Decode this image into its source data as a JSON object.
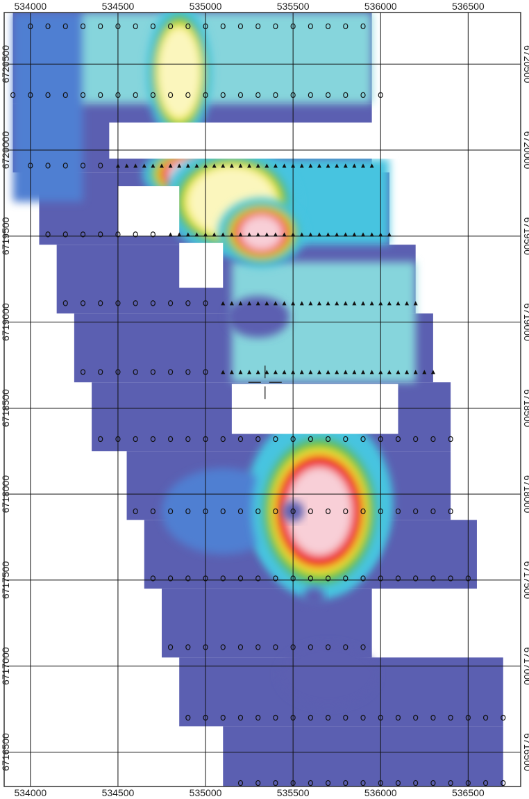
{
  "map": {
    "x_axis": {
      "min": 533850,
      "max": 536800,
      "gridlines": [
        534000,
        534500,
        535000,
        535500,
        536000,
        536500
      ],
      "labels": [
        "534000",
        "534500",
        "535000",
        "535500",
        "536000",
        "536500"
      ]
    },
    "y_axis": {
      "min": 6716300,
      "max": 6720800,
      "gridlines": [
        6720500,
        6720000,
        6719500,
        6719000,
        6718500,
        6718000,
        6717500,
        6717000,
        6716500
      ],
      "labels": [
        "6720500",
        "6720000",
        "6719500",
        "6719000",
        "6718500",
        "6718000",
        "6717500",
        "6717000",
        "6716500"
      ]
    },
    "colors": {
      "background": "#ffffff",
      "low": "#5b5fb1",
      "blue": "#4f7fd2",
      "light_blue": "#47c4e0",
      "cyan": "#86d5dc",
      "green": "#55bb46",
      "yellow": "#f5ea33",
      "pale_yellow": "#fbf6bd",
      "red": "#ee1d24",
      "high": "#f8cfd7"
    },
    "marker_symbols": [
      "circle",
      "triangle"
    ],
    "survey_lines": [
      {
        "y": 6720720,
        "x_start": 534000,
        "x_end": 535900,
        "symbol": "circle"
      },
      {
        "y": 6720320,
        "x_start": 533900,
        "x_end": 536000,
        "symbol": "circle"
      },
      {
        "y": 6719910,
        "x_start": 534000,
        "x_end": 534400,
        "symbol": "circle"
      },
      {
        "y": 6719910,
        "x_start": 534500,
        "x_end": 535950,
        "symbol": "triangle"
      },
      {
        "y": 6719510,
        "x_start": 534100,
        "x_end": 534700,
        "symbol": "circle"
      },
      {
        "y": 6719510,
        "x_start": 534800,
        "x_end": 536050,
        "symbol": "triangle"
      },
      {
        "y": 6719110,
        "x_start": 534200,
        "x_end": 535000,
        "symbol": "circle"
      },
      {
        "y": 6719110,
        "x_start": 535100,
        "x_end": 536200,
        "symbol": "triangle"
      },
      {
        "y": 6718710,
        "x_start": 534300,
        "x_end": 535000,
        "symbol": "circle"
      },
      {
        "y": 6718710,
        "x_start": 535100,
        "x_end": 536300,
        "symbol": "triangle"
      },
      {
        "y": 6718320,
        "x_start": 534400,
        "x_end": 536400,
        "symbol": "circle"
      },
      {
        "y": 6717900,
        "x_start": 534600,
        "x_end": 536400,
        "symbol": "circle"
      },
      {
        "y": 6717510,
        "x_start": 534700,
        "x_end": 536500,
        "symbol": "circle"
      },
      {
        "y": 6717110,
        "x_start": 534800,
        "x_end": 535900,
        "symbol": "circle"
      },
      {
        "y": 6716700,
        "x_start": 534900,
        "x_end": 536700,
        "symbol": "circle"
      },
      {
        "y": 6716320,
        "x_start": 535200,
        "x_end": 536700,
        "symbol": "circle"
      }
    ],
    "survey_area_blocks": [
      {
        "x": [
          533900,
          535950
        ],
        "y": [
          6720270,
          6720800
        ]
      },
      {
        "x": [
          533900,
          535950
        ],
        "y": [
          6719870,
          6720270
        ]
      },
      {
        "x": [
          534050,
          536050
        ],
        "y": [
          6719450,
          6719870
        ]
      },
      {
        "x": [
          534150,
          536200
        ],
        "y": [
          6719050,
          6719450
        ]
      },
      {
        "x": [
          534250,
          536300
        ],
        "y": [
          6718650,
          6719050
        ]
      },
      {
        "x": [
          534350,
          536400
        ],
        "y": [
          6718250,
          6718650
        ]
      },
      {
        "x": [
          534550,
          536400
        ],
        "y": [
          6717850,
          6718250
        ]
      },
      {
        "x": [
          534650,
          536550
        ],
        "y": [
          6717450,
          6717850
        ]
      },
      {
        "x": [
          534750,
          535950
        ],
        "y": [
          6717050,
          6717450
        ]
      },
      {
        "x": [
          534850,
          536700
        ],
        "y": [
          6716650,
          6717050
        ]
      },
      {
        "x": [
          535100,
          536700
        ],
        "y": [
          6716280,
          6716650
        ]
      }
    ],
    "gaps": [
      {
        "x": [
          534450,
          536100
        ],
        "y": [
          6719950,
          6720160
        ]
      },
      {
        "x": [
          534500,
          534850
        ],
        "y": [
          6719500,
          6719790
        ]
      },
      {
        "x": [
          534850,
          535100
        ],
        "y": [
          6719200,
          6719460
        ]
      },
      {
        "x": [
          535150,
          536100
        ],
        "y": [
          6718350,
          6718640
        ]
      }
    ],
    "anomalies": [
      {
        "x": 534850,
        "y": 6720450,
        "rx": 120,
        "ry": 260,
        "level": "pale_yellow"
      },
      {
        "x": 534920,
        "y": 6719860,
        "rx": 180,
        "ry": 110,
        "level": "high"
      },
      {
        "x": 535150,
        "y": 6719700,
        "rx": 250,
        "ry": 200,
        "level": "pale_yellow"
      },
      {
        "x": 535320,
        "y": 6719520,
        "rx": 160,
        "ry": 130,
        "level": "high"
      },
      {
        "x": 535650,
        "y": 6717900,
        "rx": 250,
        "ry": 330,
        "level": "high"
      }
    ],
    "low_spots": [
      {
        "x": 535300,
        "y": 6719030,
        "rx": 180,
        "ry": 120
      },
      {
        "x": 535500,
        "y": 6717900,
        "rx": 60,
        "ry": 60
      },
      {
        "x": 535620,
        "y": 6717400,
        "rx": 60,
        "ry": 60
      },
      {
        "x": 535700,
        "y": 6716950,
        "rx": 280,
        "ry": 180
      }
    ],
    "crosshair": {
      "x": 535340,
      "y": 6718650
    }
  }
}
